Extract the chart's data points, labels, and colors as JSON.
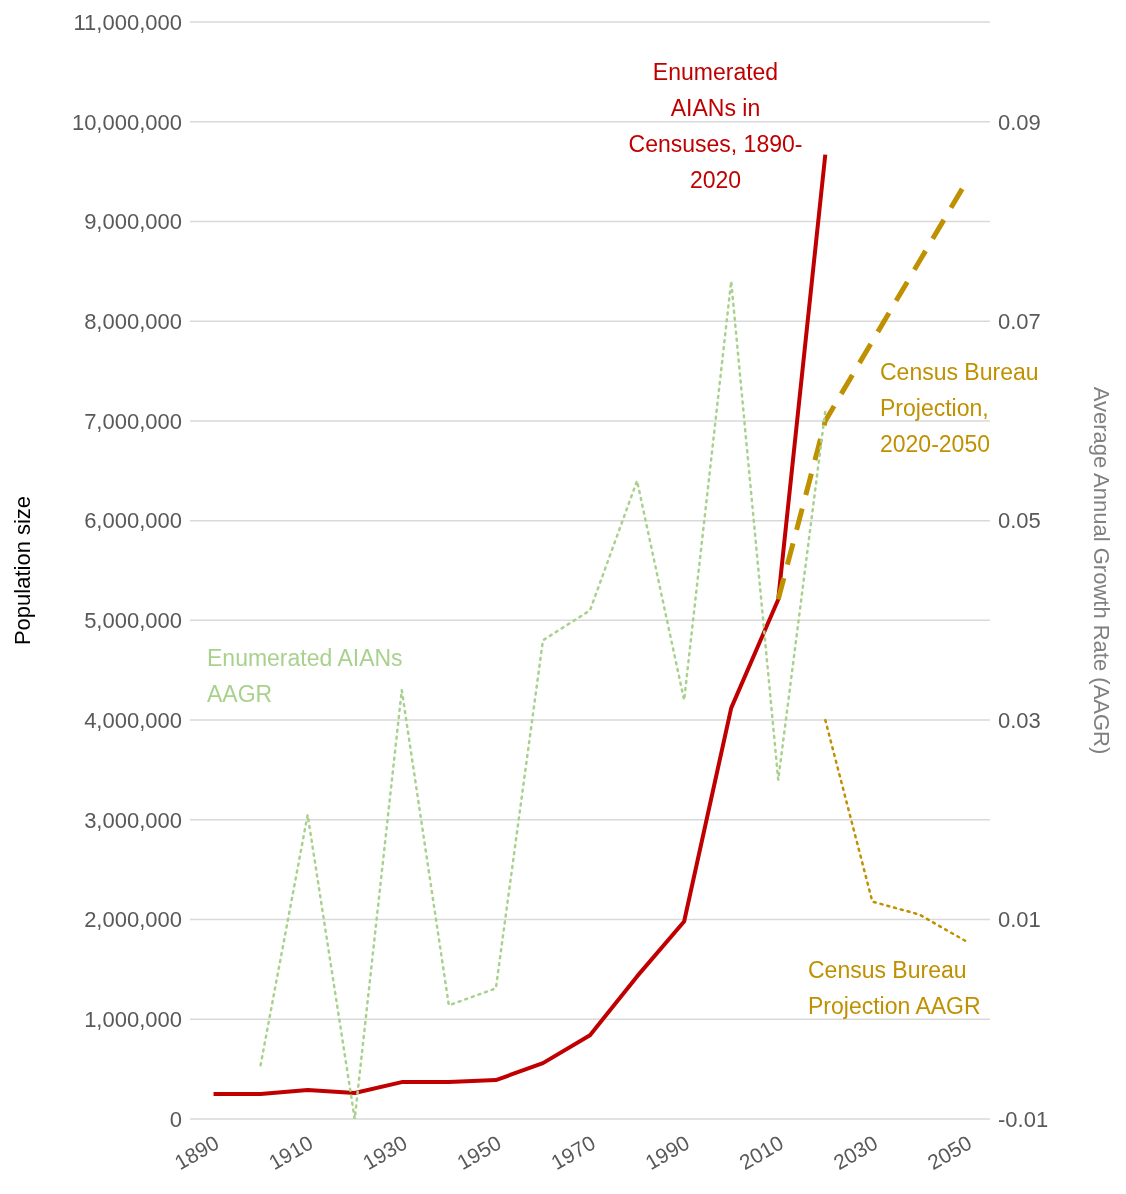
{
  "chart_data": {
    "type": "line",
    "ylabel": "Population size",
    "y2label": "Average Annual Growth Rate (AAGR)",
    "xlim": [
      1885,
      2055
    ],
    "xticks": [
      1890,
      1910,
      1930,
      1950,
      1970,
      1990,
      2010,
      2030,
      2050
    ],
    "ylim": [
      0,
      11000000
    ],
    "yticks": [
      0,
      {
        "value": 1000000,
        "label": "1,000,000"
      },
      {
        "value": 2000000,
        "label": "2,000,000"
      },
      {
        "value": 3000000,
        "label": "3,000,000"
      },
      {
        "value": 4000000,
        "label": "4,000,000"
      },
      {
        "value": 5000000,
        "label": "5,000,000"
      },
      {
        "value": 6000000,
        "label": "6,000,000"
      },
      {
        "value": 7000000,
        "label": "7,000,000"
      },
      {
        "value": 8000000,
        "label": "8,000,000"
      },
      {
        "value": 9000000,
        "label": "9,000,000"
      },
      {
        "value": 10000000,
        "label": "10,000,000"
      },
      {
        "value": 11000000,
        "label": "11,000,000"
      }
    ],
    "y2lim": [
      -0.01,
      0.1
    ],
    "y2ticks": [
      -0.01,
      0.01,
      0.03,
      0.05,
      0.07,
      0.09
    ],
    "grid": "y",
    "marker": "none",
    "series": [
      {
        "name": "Enumerated AIANs in Censuses, 1890-2020",
        "color": "#c00000",
        "line_style": "solid",
        "x": [
          1890,
          1900,
          1910,
          1920,
          1930,
          1940,
          1950,
          1960,
          1970,
          1980,
          1990,
          2000,
          2010,
          2020
        ],
        "values": [
          250000,
          250000,
          290000,
          260000,
          370000,
          370000,
          390000,
          560000,
          840000,
          1430000,
          1980000,
          4120000,
          5210000,
          9670000
        ]
      },
      {
        "name": "Census Bureau Projection, 2020-2050",
        "color": "#bf9000",
        "line_style": "dashed",
        "x": [
          2010,
          2020,
          2030,
          2040,
          2050
        ],
        "values": [
          5210000,
          7000000,
          7800000,
          8600000,
          9400000
        ]
      },
      {
        "name": "Enumerated AIANs AAGR",
        "color": "#a9d18e",
        "line_style": "dotted",
        "axis": "y2",
        "x": [
          1900,
          1910,
          1920,
          1930,
          1940,
          1950,
          1960,
          1970,
          1980,
          1990,
          2000,
          2010,
          2020
        ],
        "values": [
          -0.0046,
          0.0205,
          -0.01,
          0.033,
          0.0014,
          0.0031,
          0.038,
          0.041,
          0.054,
          0.032,
          0.074,
          0.024,
          0.061
        ]
      },
      {
        "name": "Census Bureau Projection AAGR",
        "color": "#bf9000",
        "line_style": "dotted",
        "axis": "y2",
        "x": [
          2020,
          2030,
          2040,
          2050
        ],
        "values": [
          0.03,
          0.0118,
          0.0105,
          0.0078
        ]
      }
    ]
  }
}
